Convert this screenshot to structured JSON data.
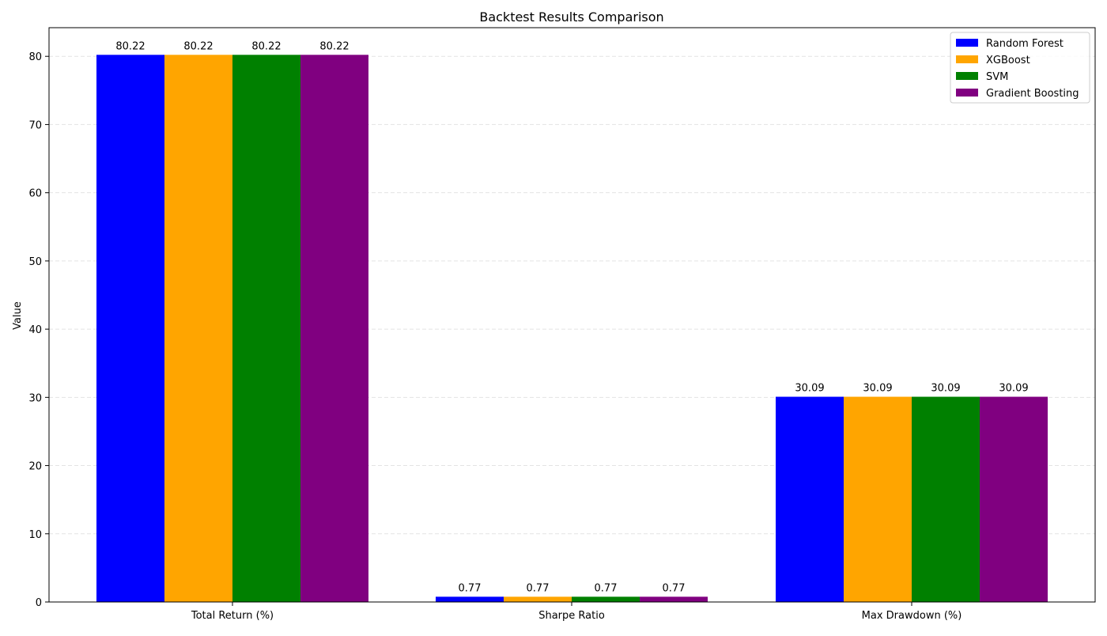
{
  "chart_data": {
    "type": "bar",
    "title": "Backtest Results Comparison",
    "xlabel": "",
    "ylabel": "Value",
    "categories": [
      "Total Return (%)",
      "Sharpe Ratio",
      "Max Drawdown (%)"
    ],
    "series": [
      {
        "name": "Random Forest",
        "color": "#0000ff",
        "values": [
          80.22,
          0.77,
          30.09
        ]
      },
      {
        "name": "XGBoost",
        "color": "#ffa500",
        "values": [
          80.22,
          0.77,
          30.09
        ]
      },
      {
        "name": "SVM",
        "color": "#008000",
        "values": [
          80.22,
          0.77,
          30.09
        ]
      },
      {
        "name": "Gradient Boosting",
        "color": "#800080",
        "values": [
          80.22,
          0.77,
          30.09
        ]
      }
    ],
    "data_labels": [
      [
        "80.22",
        "0.77",
        "30.09"
      ],
      [
        "80.22",
        "0.77",
        "30.09"
      ],
      [
        "80.22",
        "0.77",
        "30.09"
      ],
      [
        "80.22",
        "0.77",
        "30.09"
      ]
    ],
    "ylim": [
      0,
      84.2
    ],
    "yticks": [
      0,
      10,
      20,
      30,
      40,
      50,
      60,
      70,
      80
    ],
    "grid": "y-dashed",
    "legend_position": "top-right"
  }
}
